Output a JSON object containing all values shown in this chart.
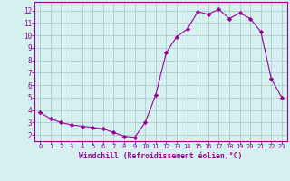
{
  "x": [
    0,
    1,
    2,
    3,
    4,
    5,
    6,
    7,
    8,
    9,
    10,
    11,
    12,
    13,
    14,
    15,
    16,
    17,
    18,
    19,
    20,
    21,
    22,
    23
  ],
  "y": [
    3.8,
    3.3,
    3.0,
    2.8,
    2.7,
    2.6,
    2.5,
    2.2,
    1.9,
    1.8,
    3.0,
    5.2,
    8.6,
    9.9,
    10.5,
    11.9,
    11.7,
    12.1,
    11.35,
    11.8,
    11.35,
    10.3,
    6.5,
    5.0
  ],
  "line_color": "#990099",
  "marker": "D",
  "marker_size": 2.2,
  "bg_color": "#d6f0f0",
  "grid_color": "#aacccc",
  "xlabel": "Windchill (Refroidissement éolien,°C)",
  "xlabel_color": "#990099",
  "xlim": [
    -0.5,
    23.5
  ],
  "ylim": [
    1.5,
    12.7
  ],
  "yticks": [
    2,
    3,
    4,
    5,
    6,
    7,
    8,
    9,
    10,
    11,
    12
  ],
  "xticks": [
    0,
    1,
    2,
    3,
    4,
    5,
    6,
    7,
    8,
    9,
    10,
    11,
    12,
    13,
    14,
    15,
    16,
    17,
    18,
    19,
    20,
    21,
    22,
    23
  ],
  "tick_color": "#990099",
  "spine_color": "#990099",
  "tick_fontsize": 5.0,
  "ytick_fontsize": 5.5,
  "xlabel_fontsize": 5.8
}
